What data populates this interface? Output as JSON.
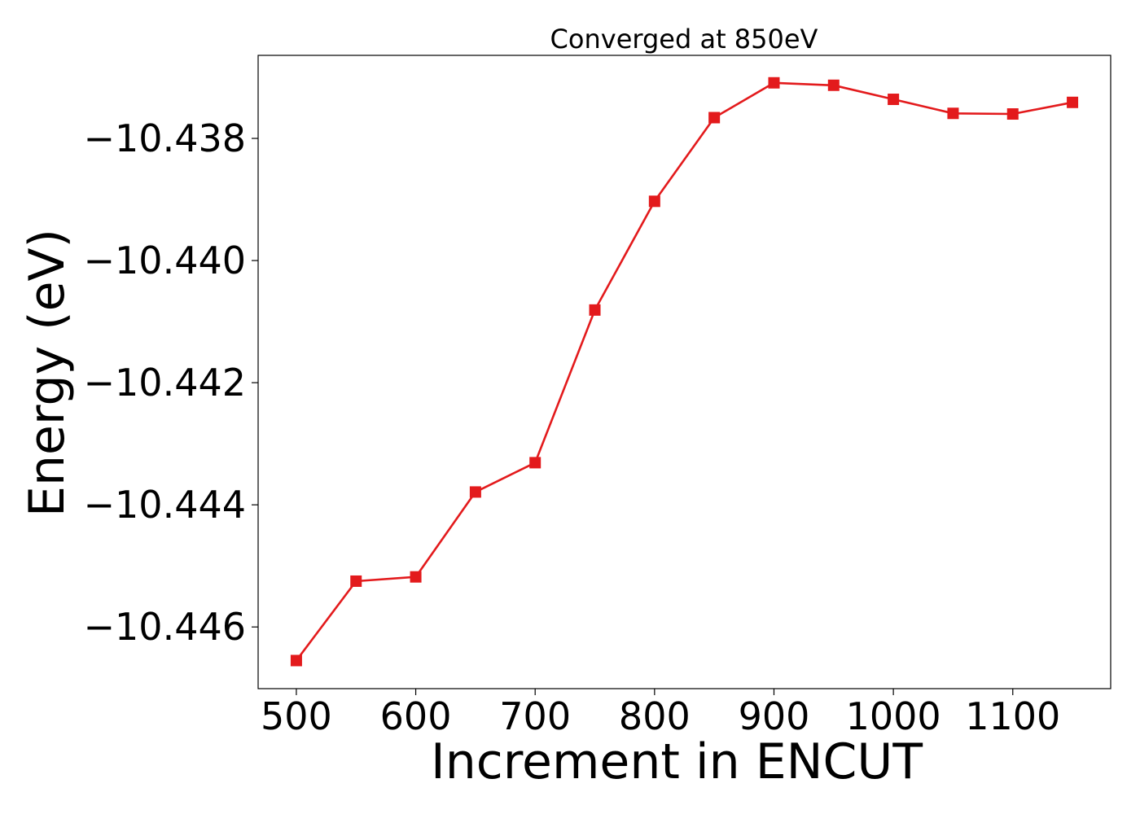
{
  "chart_data": {
    "type": "line",
    "title": "Converged at 850eV",
    "xlabel": "Increment in ENCUT",
    "ylabel": "Energy (eV)",
    "xlim": [
      468,
      1182
    ],
    "ylim": [
      -10.44701,
      -10.43664
    ],
    "xticks": [
      500,
      600,
      700,
      800,
      900,
      1000,
      1100
    ],
    "xtick_labels": [
      "500",
      "600",
      "700",
      "800",
      "900",
      "1000",
      "1100"
    ],
    "yticks": [
      -10.438,
      -10.44,
      -10.442,
      -10.444,
      -10.446
    ],
    "ytick_labels": [
      "−10.438",
      "−10.440",
      "−10.442",
      "−10.444",
      "−10.446"
    ],
    "grid": false,
    "series": [
      {
        "color": "#e31a1c",
        "marker": "square",
        "x": [
          500,
          550,
          600,
          650,
          700,
          750,
          800,
          850,
          900,
          950,
          1000,
          1050,
          1100,
          1150
        ],
        "y": [
          -10.44655,
          -10.44525,
          -10.44518,
          -10.44379,
          -10.44331,
          -10.44081,
          -10.43903,
          -10.43766,
          -10.43709,
          -10.43713,
          -10.43736,
          -10.43759,
          -10.4376,
          -10.43741
        ]
      }
    ]
  }
}
